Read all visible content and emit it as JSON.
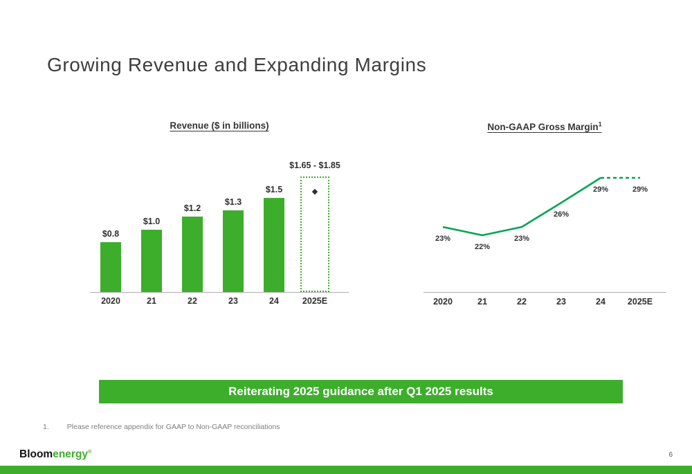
{
  "slide": {
    "title": "Growing Revenue and Expanding Margins",
    "banner": "Reiterating 2025 guidance after Q1 2025 results",
    "footnote_number": "1.",
    "footnote_text": "Please reference appendix for GAAP to Non-GAAP reconciliations",
    "page_number": "6",
    "logo": {
      "bloom": "Bloom",
      "energy": "energy",
      "registered": "®"
    }
  },
  "colors": {
    "bloom_green": "#3dae2b",
    "line_green": "#00a551",
    "banner_text": "#ffffff",
    "title_gray": "#3d3d3d"
  },
  "chart_data": [
    {
      "type": "bar",
      "title": "Revenue ($ in billions)",
      "categories": [
        "2020",
        "21",
        "22",
        "23",
        "24",
        "2025E"
      ],
      "values": [
        0.8,
        1.0,
        1.2,
        1.3,
        1.5,
        null
      ],
      "labels": [
        "$0.8",
        "$1.0",
        "$1.2",
        "$1.3",
        "$1.5",
        ""
      ],
      "estimate": {
        "category": "2025E",
        "label": "$1.65 - $1.85",
        "low": 1.65,
        "high": 1.85,
        "marker_value": 1.75
      },
      "ylim": [
        0,
        2.1
      ],
      "bar_color": "#3dae2b",
      "xlabel": "",
      "ylabel": ""
    },
    {
      "type": "line",
      "title": "Non-GAAP Gross Margin",
      "title_superscript": "1",
      "categories": [
        "2020",
        "21",
        "22",
        "23",
        "24",
        "2025E"
      ],
      "values": [
        23,
        22,
        23,
        26,
        29,
        29
      ],
      "labels": [
        "23%",
        "22%",
        "23%",
        "26%",
        "29%",
        "29%"
      ],
      "dashed_from_index": 4,
      "ylim": [
        15,
        32
      ],
      "line_color": "#00a551",
      "xlabel": "",
      "ylabel": ""
    }
  ]
}
